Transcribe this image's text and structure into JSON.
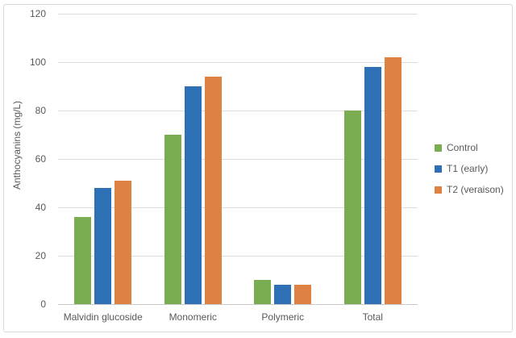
{
  "chart_data": {
    "type": "bar",
    "title": "",
    "xlabel": "",
    "ylabel": "Anthocyanins (mg/L)",
    "ylim": [
      0,
      120
    ],
    "yticks": [
      0,
      20,
      40,
      60,
      80,
      100,
      120
    ],
    "grid": true,
    "legend_position": "right",
    "categories": [
      "Malvidin glucoside",
      "Monomeric",
      "Polymeric",
      "Total"
    ],
    "series": [
      {
        "name": "Control",
        "color": "#7AAC52",
        "values": [
          36,
          70,
          10,
          80
        ]
      },
      {
        "name": "T1 (early)",
        "color": "#2E70B5",
        "values": [
          48,
          90,
          8,
          98
        ]
      },
      {
        "name": "T2 (veraison)",
        "color": "#DD8243",
        "values": [
          51,
          94,
          8,
          102
        ]
      }
    ]
  },
  "colors": {
    "background": "#FFFFFF",
    "chart_border": "#D9D9D9",
    "gridline": "#DCDCDC",
    "axis_baseline": "#C9C9C9",
    "text": "#595959"
  }
}
